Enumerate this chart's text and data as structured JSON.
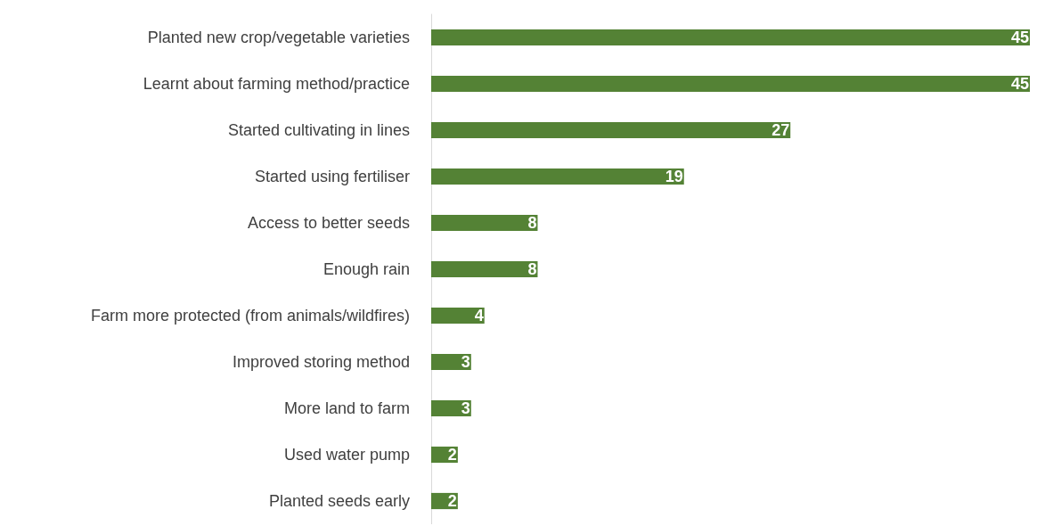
{
  "chart_data": {
    "type": "bar",
    "orientation": "horizontal",
    "categories": [
      "Planted new crop/vegetable varieties",
      "Learnt about farming method/practice",
      "Started cultivating in lines",
      "Started using fertiliser",
      "Access to better seeds",
      "Enough rain",
      "Farm more protected (from animals/wildfires)",
      "Improved storing method",
      "More land to farm",
      "Used water pump",
      "Planted seeds early"
    ],
    "values": [
      45,
      45,
      27,
      19,
      8,
      8,
      4,
      3,
      3,
      2,
      2
    ],
    "color": "#548235",
    "data_labels": true
  }
}
